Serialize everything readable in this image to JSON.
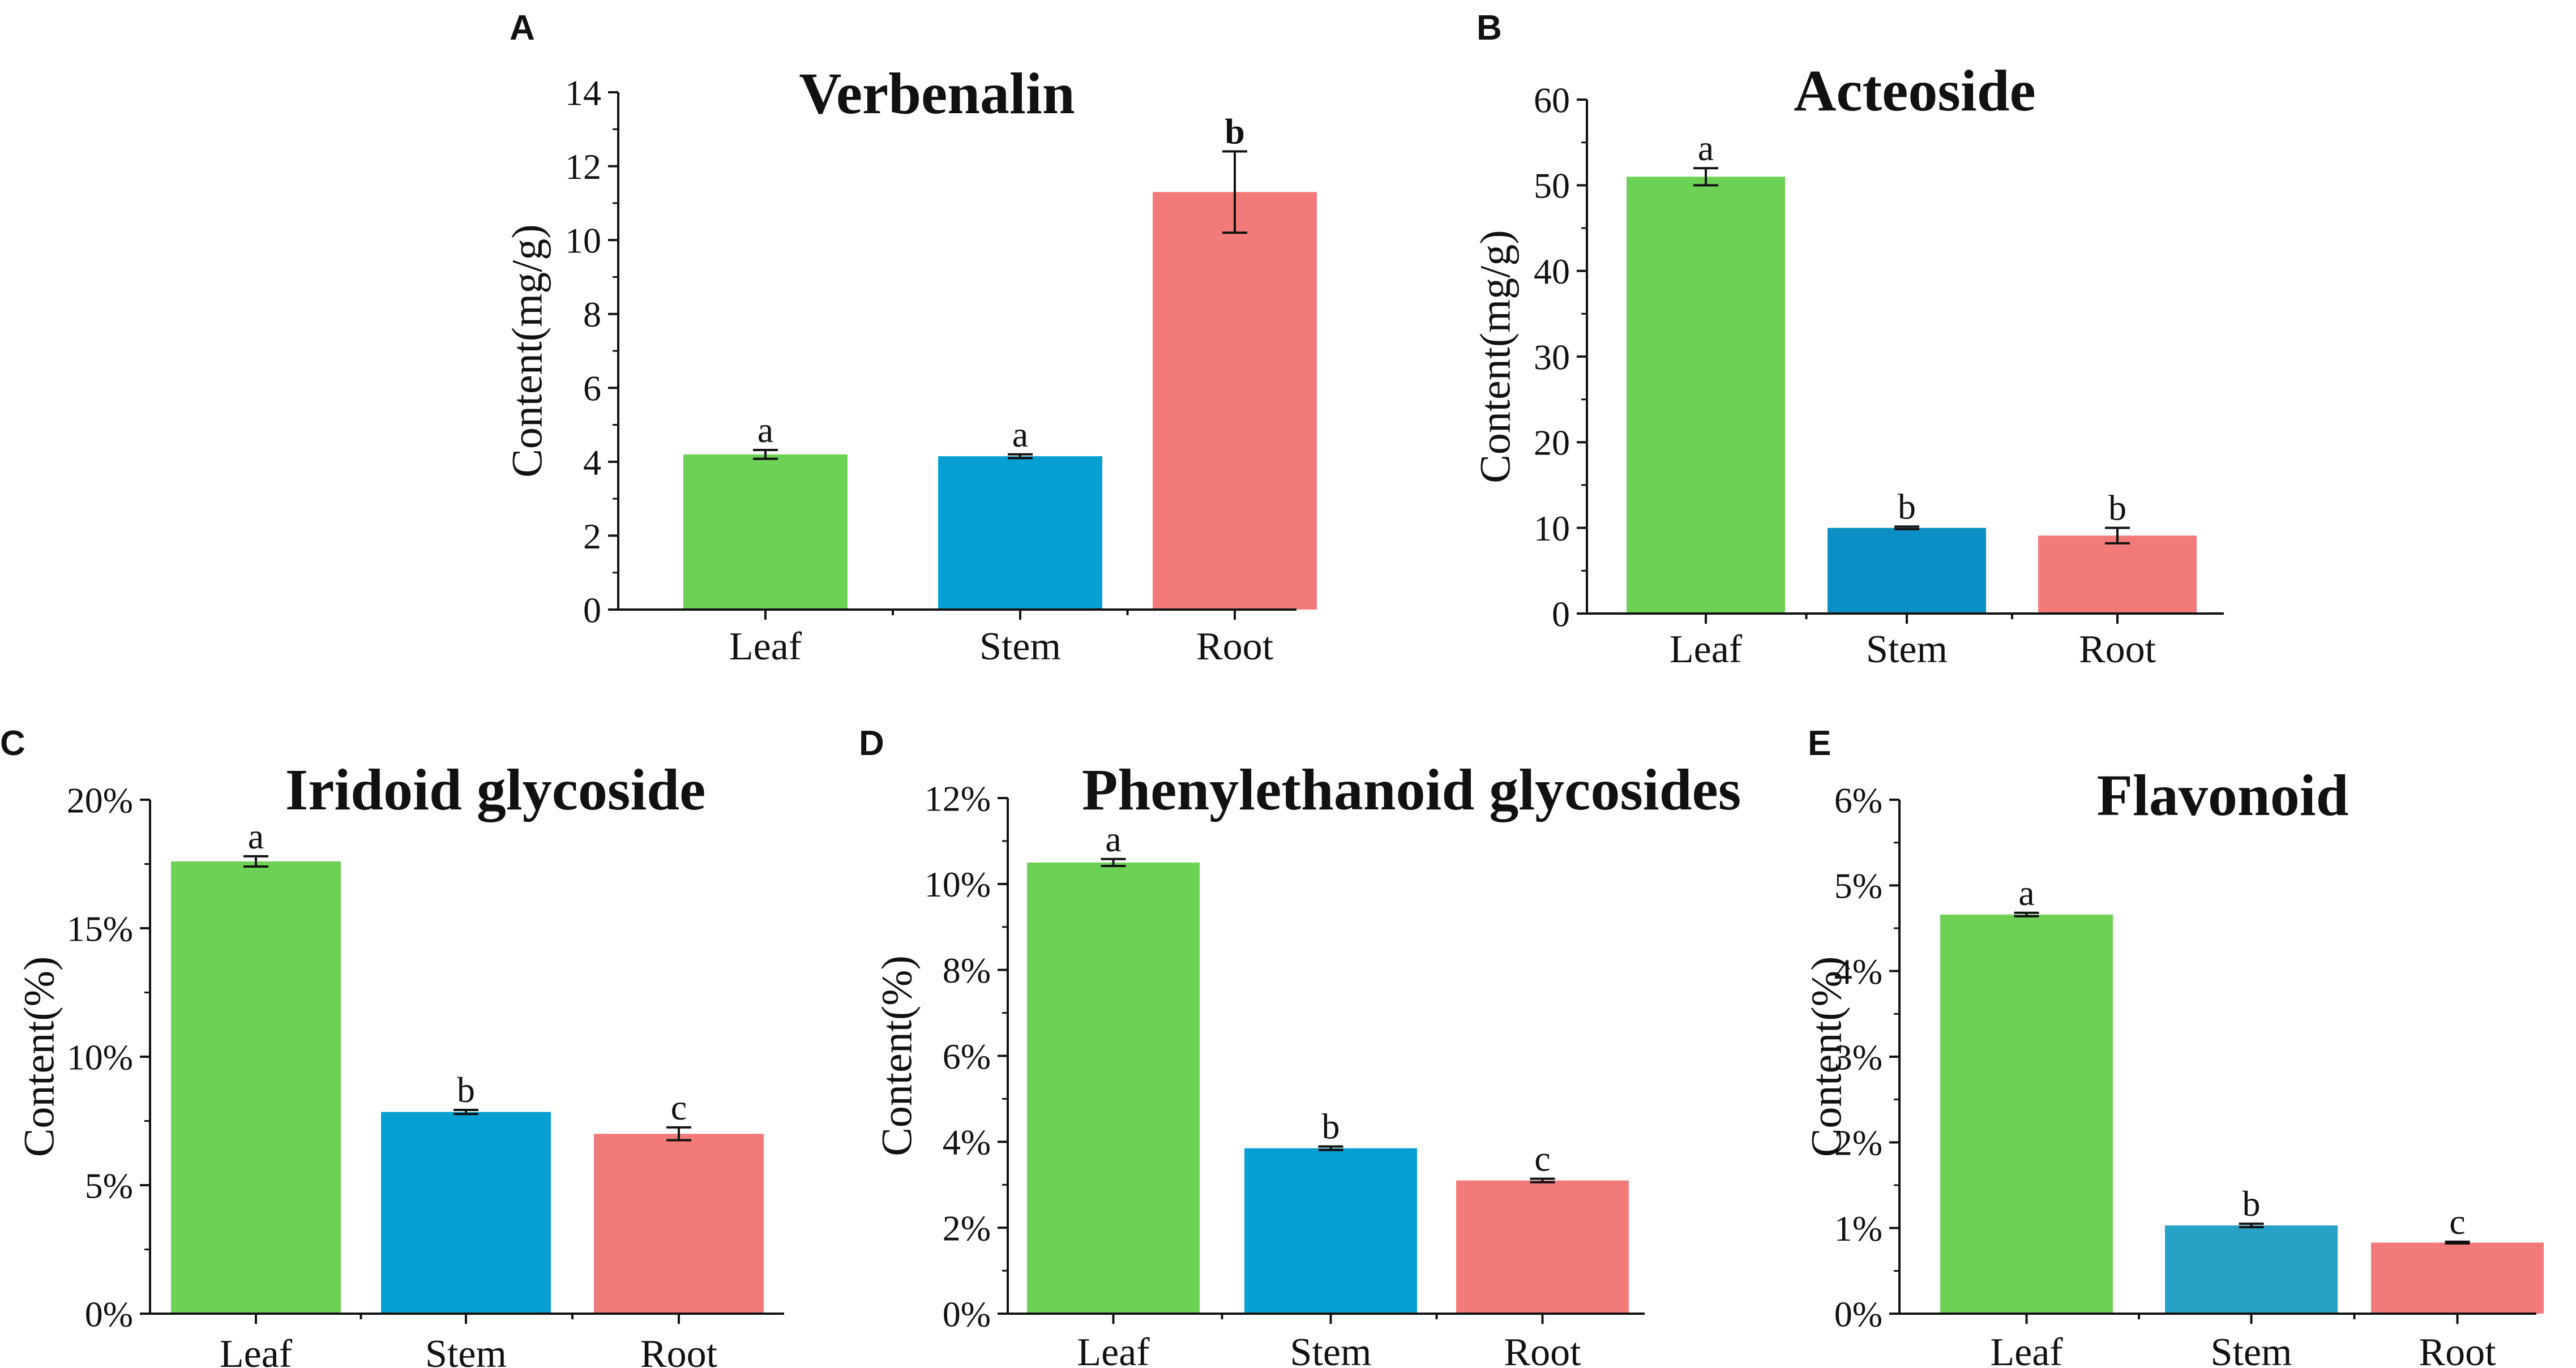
{
  "chart_data": [
    {
      "panel": "A",
      "type": "bar",
      "title": "Verbenalin",
      "ylabel": "Content(mg/g)",
      "xlabel": "",
      "categories": [
        "Leaf",
        "Stem",
        "Root"
      ],
      "values": [
        4.2,
        4.15,
        11.3
      ],
      "errors": [
        0.12,
        0.05,
        1.1
      ],
      "letters": [
        "a",
        "a",
        "b"
      ],
      "colors": [
        "#6dd155",
        "#089fd3",
        "#f27b79"
      ],
      "ylim": [
        0,
        14
      ],
      "ytick_step": 2,
      "yticks": [
        "0",
        "2",
        "4",
        "6",
        "8",
        "10",
        "12",
        "14"
      ],
      "grid": false
    },
    {
      "panel": "B",
      "type": "bar",
      "title": "Acteoside",
      "ylabel": "Content(mg/g)",
      "xlabel": "",
      "categories": [
        "Leaf",
        "Stem",
        "Root"
      ],
      "values": [
        51,
        10,
        9.1
      ],
      "errors": [
        1.0,
        0.15,
        0.9
      ],
      "letters": [
        "a",
        "b",
        "b"
      ],
      "colors": [
        "#6dd155",
        "#0b8fc4",
        "#f27b79"
      ],
      "ylim": [
        0,
        60
      ],
      "ytick_step": 10,
      "yticks": [
        "0",
        "10",
        "20",
        "30",
        "40",
        "50",
        "60"
      ],
      "grid": false
    },
    {
      "panel": "C",
      "type": "bar",
      "title": "Iridoid glycoside",
      "ylabel": "Content(%)",
      "xlabel": "",
      "categories": [
        "Leaf",
        "Stem",
        "Root"
      ],
      "values": [
        17.6,
        7.85,
        7.0
      ],
      "errors": [
        0.2,
        0.08,
        0.25
      ],
      "letters": [
        "a",
        "b",
        "c"
      ],
      "colors": [
        "#6dd155",
        "#089fd3",
        "#f27b79"
      ],
      "ylim": [
        0,
        20
      ],
      "ytick_step": 5,
      "yticks": [
        "0%",
        "5%",
        "10%",
        "15%",
        "20%"
      ],
      "grid": false
    },
    {
      "panel": "D",
      "type": "bar",
      "title": "Phenylethanoid glycosides",
      "ylabel": "Content(%)",
      "xlabel": "",
      "categories": [
        "Leaf",
        "Stem",
        "Root"
      ],
      "values": [
        10.5,
        3.85,
        3.1
      ],
      "errors": [
        0.08,
        0.04,
        0.04
      ],
      "letters": [
        "a",
        "b",
        "c"
      ],
      "colors": [
        "#6dd155",
        "#089fd3",
        "#f27b79"
      ],
      "ylim": [
        0,
        12
      ],
      "ytick_step": 2,
      "yticks": [
        "0%",
        "2%",
        "4%",
        "6%",
        "8%",
        "10%",
        "12%"
      ],
      "grid": false
    },
    {
      "panel": "E",
      "type": "bar",
      "title": "Flavonoid",
      "ylabel": "Content(%)",
      "xlabel": "",
      "categories": [
        "Leaf",
        "Stem",
        "Root"
      ],
      "values": [
        4.66,
        1.03,
        0.83
      ],
      "errors": [
        0.02,
        0.02,
        0.01
      ],
      "letters": [
        "a",
        "b",
        "c"
      ],
      "colors": [
        "#6dd155",
        "#25a2c6",
        "#f27b79"
      ],
      "ylim": [
        0,
        6
      ],
      "ytick_step": 1,
      "yticks": [
        "0%",
        "1%",
        "2%",
        "3%",
        "4%",
        "5%",
        "6%"
      ],
      "grid": false
    }
  ]
}
